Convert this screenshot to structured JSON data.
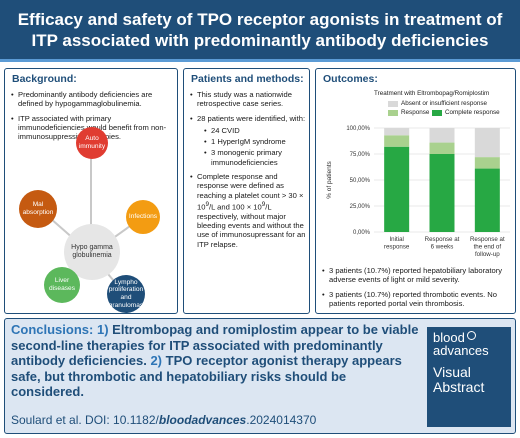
{
  "header": {
    "title": "Efficacy and safety of TPO receptor agonists in treatment of ITP associated with predominantly antibody deficiencies",
    "bg_color": "#1f4e79"
  },
  "background": {
    "title": "Background:",
    "bullets": [
      "Predominantly antibody deficiencies are defined by hypogammaglobulinemia.",
      "ITP associated with primary immunodeficiencies would benefit from non-immunosuppressive therapies."
    ],
    "diagram": {
      "center": "Hypo gamma globulinemia",
      "nodes": [
        {
          "label": "Auto immunity",
          "color": "#e03c31"
        },
        {
          "label": "Infections",
          "color": "#f39c12"
        },
        {
          "label": "Lympho proliferation and granulomas",
          "color": "#1f4e79"
        },
        {
          "label": "Liver diseases",
          "color": "#5cb85c"
        },
        {
          "label": "Mal absorption",
          "color": "#c55a11"
        }
      ]
    }
  },
  "patients": {
    "title": "Patients and methods:",
    "bullet1": "This study was a nationwide retrospective case series.",
    "bullet2": "28 patients were identified, with:",
    "sub": [
      "24 CVID",
      "1 HyperIgM syndrome",
      "3 monogenic primary immunodeficiencies"
    ],
    "bullet3_a": "Complete response and response were defined as reaching a platelet count > 30 × 10",
    "bullet3_sup1": "9",
    "bullet3_b": "/L and 100 × 10",
    "bullet3_sup2": "9",
    "bullet3_c": "/L respectively, without major bleeding events and without the use of immunosupressant for an ITP relapse."
  },
  "outcomes": {
    "title": "Outcomes:",
    "bullets": [
      "3 patients (10.7%) reported hepatobiliary laboratory adverse events of light or mild severity.",
      "3 patients (10.7%) reported thrombotic events. No patients reported portal vein thrombosis."
    ]
  },
  "chart_data": {
    "type": "bar",
    "stacked": true,
    "title": "Treatment with Eltrombopag/Romiplostim",
    "categories": [
      "Initial response",
      "Response at 6 weeks",
      "Response at the end of follow-up"
    ],
    "series": [
      {
        "name": "Complete response",
        "values": [
          82,
          75,
          61
        ],
        "color": "#27a844"
      },
      {
        "name": "Response",
        "values": [
          11,
          11,
          11
        ],
        "color": "#a9d18e"
      },
      {
        "name": "Absent or insufficient response",
        "values": [
          7,
          14,
          28
        ],
        "color": "#d9d9d9"
      }
    ],
    "ylabel": "% of patients",
    "ylim": [
      0,
      100
    ],
    "yticks": [
      "0,00%",
      "25,00%",
      "50,00%",
      "75,00%",
      "100,00%"
    ],
    "ytick_values": [
      0,
      25,
      50,
      75,
      100
    ],
    "legend": [
      {
        "label": "Absent or insufficient response",
        "color": "#d9d9d9"
      },
      {
        "label": "Response",
        "color": "#a9d18e"
      },
      {
        "label": "Complete response",
        "color": "#27a844"
      }
    ],
    "legend_position": "top"
  },
  "conclusions": {
    "label": "Conclusions:",
    "num1": "1)",
    "text1": "Eltrombopag and romiplostim appear to be viable second-line therapies for ITP associated with predominantly antibody deficiencies.",
    "num2": "2)",
    "text2": "TPO receptor agonist therapy appears safe, but thrombotic and hepatobiliary risks should be considered."
  },
  "citation": {
    "prefix": "Soulard et al. DOI: 10.1182/",
    "em": "bloodadvances",
    "suffix": ".2024014370"
  },
  "logo": {
    "line1": "blood",
    "line2": "advances",
    "line3": "Visual",
    "line4": "Abstract"
  }
}
